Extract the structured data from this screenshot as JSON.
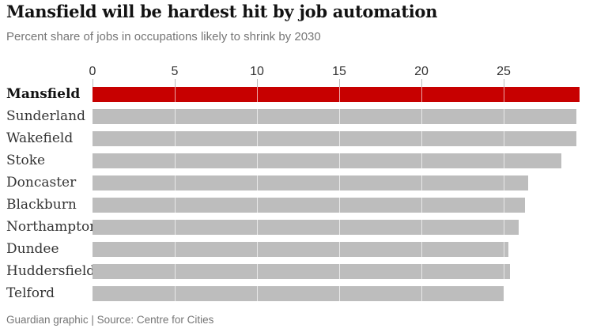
{
  "chart_data": {
    "type": "bar",
    "orientation": "horizontal",
    "title": "Mansfield will be hardest hit by job automation",
    "subtitle": "Percent share of jobs in occupations likely to shrink by 2030",
    "source": "Guardian graphic | Source: Centre for Cities",
    "categories": [
      "Mansfield",
      "Sunderland",
      "Wakefield",
      "Stoke",
      "Doncaster",
      "Blackburn",
      "Northampton",
      "Dundee",
      "Huddersfield",
      "Telford"
    ],
    "values": [
      29.6,
      29.4,
      29.4,
      28.5,
      26.5,
      26.3,
      25.9,
      25.3,
      25.4,
      25.0
    ],
    "highlighted_category": "Mansfield",
    "xlabel": "",
    "ylabel": "",
    "x_ticks": [
      0,
      5,
      10,
      15,
      20,
      25
    ],
    "xlim": [
      0,
      29.6
    ],
    "grid": "white vertical gridlines drawn over bars at each x tick",
    "legend_position": "none",
    "bar_color_default": "#bdbdbd",
    "bar_color_highlight": "#c70000",
    "axis_text_color": "#333333",
    "title_color": "#121212",
    "subtitle_color": "#767676"
  }
}
